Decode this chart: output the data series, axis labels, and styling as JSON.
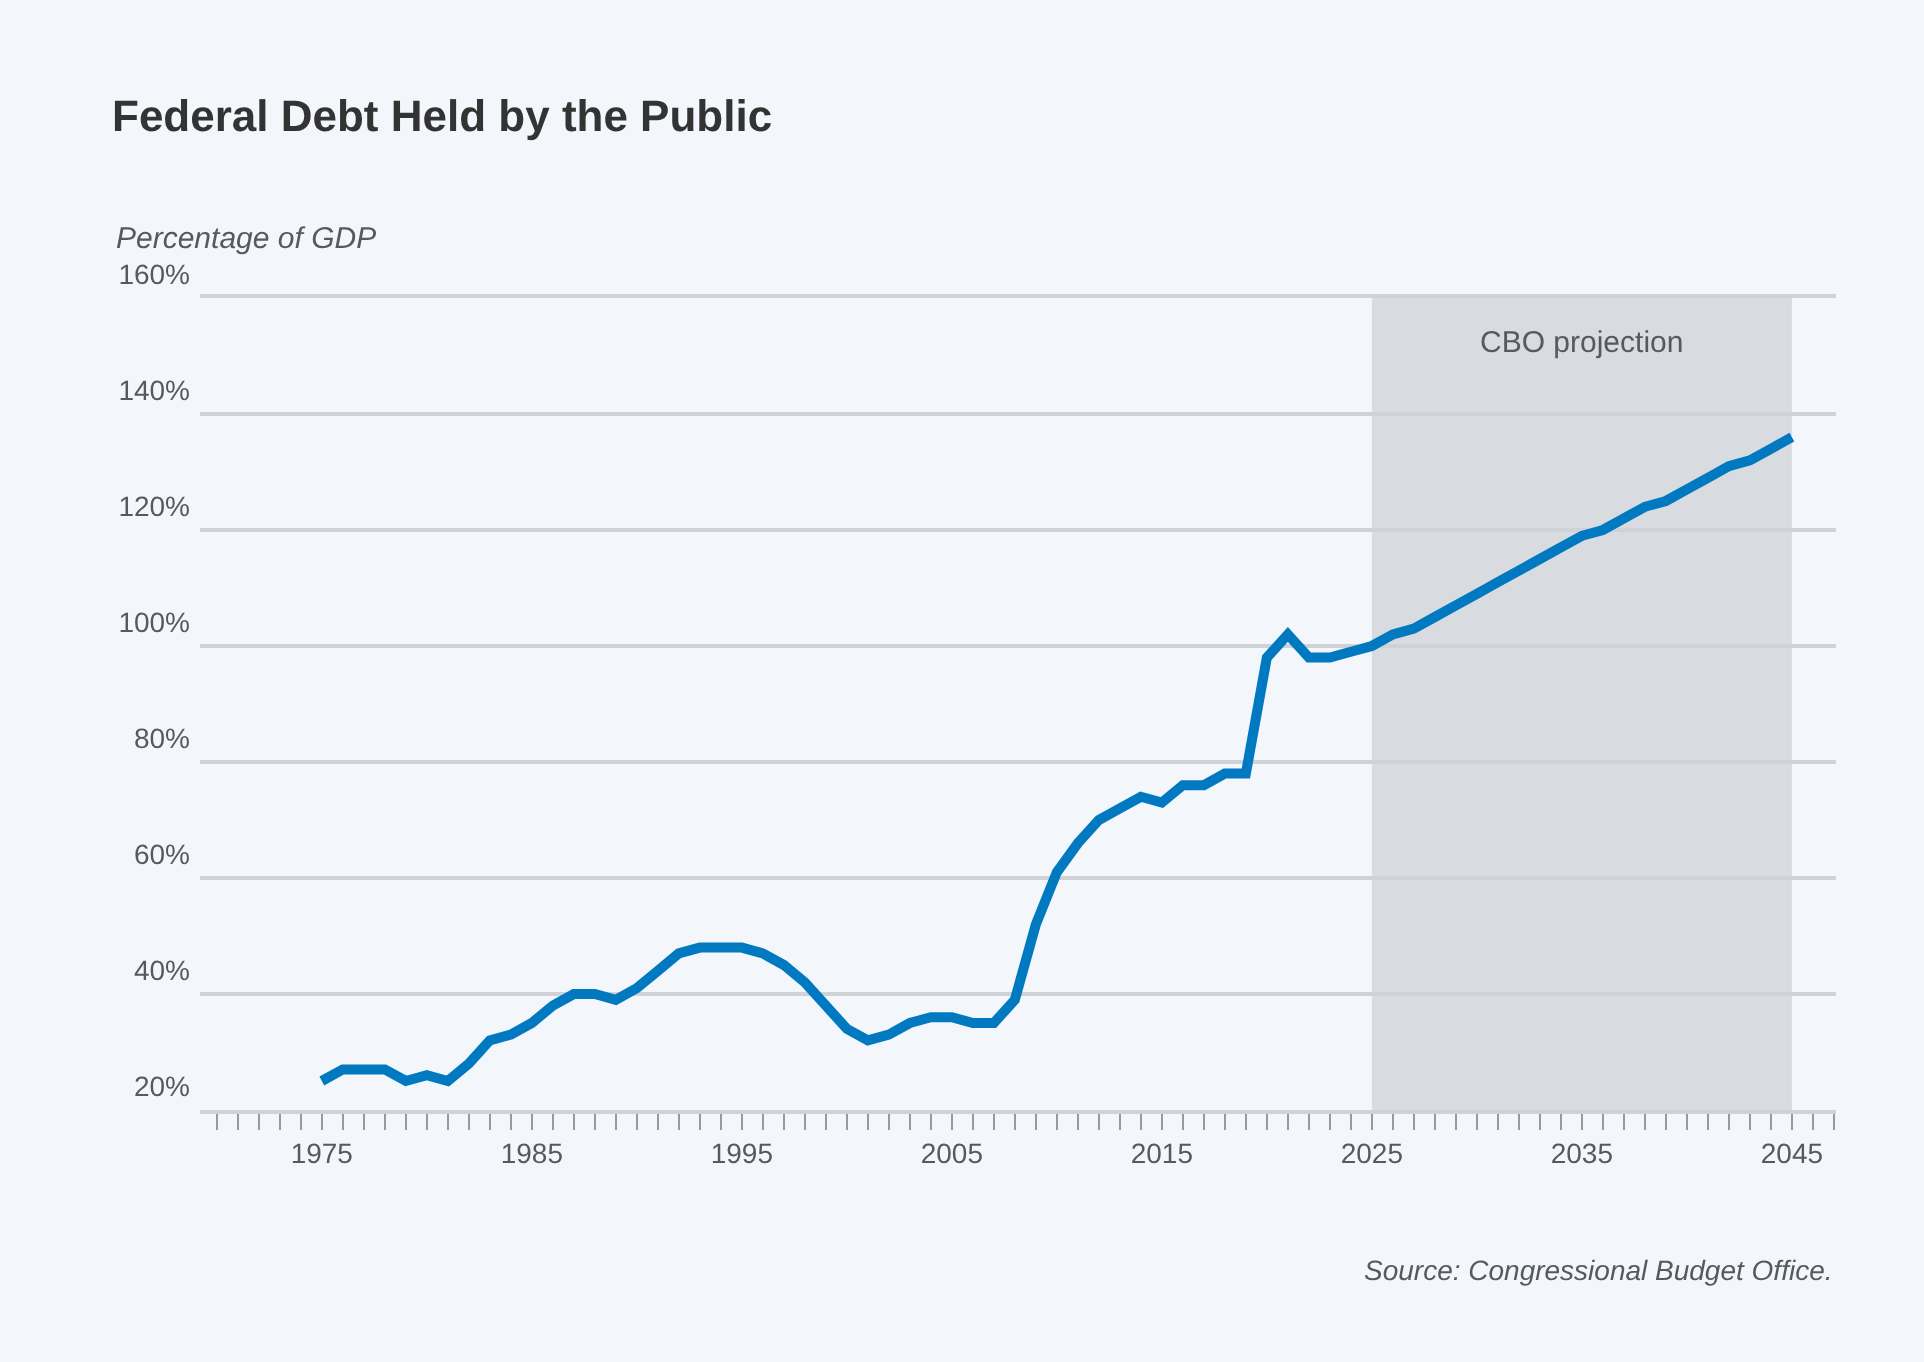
{
  "chart_data": {
    "type": "line",
    "title": "Federal Debt Held by the Public",
    "ylabel": "Percentage of GDP",
    "x": [
      1975,
      1976,
      1977,
      1978,
      1979,
      1980,
      1981,
      1982,
      1983,
      1984,
      1985,
      1986,
      1987,
      1988,
      1989,
      1990,
      1991,
      1992,
      1993,
      1994,
      1995,
      1996,
      1997,
      1998,
      1999,
      2000,
      2001,
      2002,
      2003,
      2004,
      2005,
      2006,
      2007,
      2008,
      2009,
      2010,
      2011,
      2012,
      2013,
      2014,
      2015,
      2016,
      2017,
      2018,
      2019,
      2020,
      2021,
      2022,
      2023,
      2024,
      2025,
      2026,
      2027,
      2028,
      2029,
      2030,
      2031,
      2032,
      2033,
      2034,
      2035,
      2036,
      2037,
      2038,
      2039,
      2040,
      2041,
      2042,
      2043,
      2044,
      2045
    ],
    "series": [
      {
        "color": "#0079c1",
        "values": [
          25,
          27,
          27,
          27,
          25,
          26,
          25,
          28,
          32,
          33,
          35,
          38,
          40,
          40,
          39,
          41,
          44,
          47,
          48,
          48,
          48,
          47,
          45,
          42,
          38,
          34,
          32,
          33,
          35,
          36,
          36,
          35,
          35,
          39,
          52,
          61,
          66,
          70,
          72,
          74,
          73,
          76,
          76,
          78,
          78,
          98,
          102,
          98,
          98,
          99,
          100,
          102,
          103,
          105,
          107,
          109,
          111,
          113,
          115,
          117,
          119,
          120,
          122,
          124,
          125,
          127,
          129,
          131,
          132,
          134,
          136
        ]
      }
    ],
    "xlim": [
      1969.2,
      2047.1
    ],
    "xticks": [
      1975,
      1985,
      1995,
      2005,
      2015,
      2025,
      2035,
      2045
    ],
    "ylim": [
      20,
      160
    ],
    "yticks": [
      {
        "value": 20,
        "label": "20%"
      },
      {
        "value": 40,
        "label": "40%"
      },
      {
        "value": 60,
        "label": "60%"
      },
      {
        "value": 80,
        "label": "80%"
      },
      {
        "value": 100,
        "label": "100%"
      },
      {
        "value": 120,
        "label": "120%"
      },
      {
        "value": 140,
        "label": "140%"
      },
      {
        "value": 160,
        "label": "160%"
      }
    ],
    "grid": "y",
    "marker": "none",
    "line_style": "solid",
    "bands": [
      {
        "axis": "x",
        "from": 2025,
        "to": 2045,
        "label": "CBO projection",
        "color": "#d8dbe0"
      }
    ],
    "annotations": [
      "Source: Congressional Budget Office."
    ]
  }
}
